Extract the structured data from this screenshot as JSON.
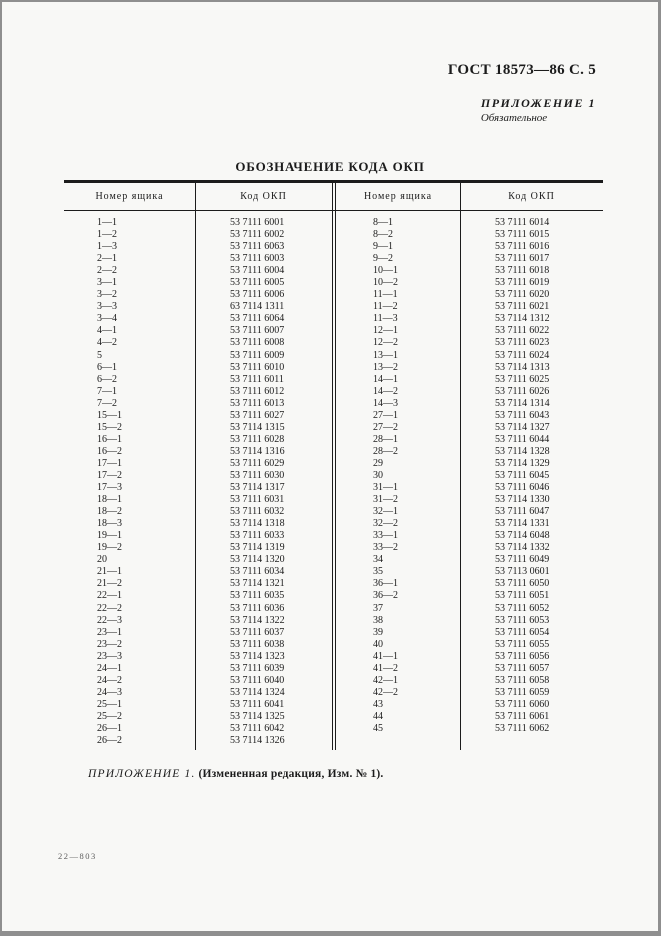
{
  "page": {
    "doc_ref": "ГОСТ 18573—86 С. 5",
    "appendix_label": "ПРИЛОЖЕНИЕ 1",
    "appendix_sublabel": "Обязательное",
    "print_code": "22—803"
  },
  "table": {
    "title": "ОБОЗНАЧЕНИЕ КОДА ОКП",
    "col_headers": [
      "Номер ящика",
      "Код ОКП",
      "Номер ящика",
      "Код ОКП"
    ],
    "left_rows": [
      {
        "num": "1—1",
        "code": "53 7111 6001"
      },
      {
        "num": "1—2",
        "code": "53 7111 6002"
      },
      {
        "num": "1—3",
        "code": "53 7111 6063"
      },
      {
        "num": "2—1",
        "code": "53 7111 6003"
      },
      {
        "num": "2—2",
        "code": "53 7111 6004"
      },
      {
        "num": "3—1",
        "code": "53 7111 6005"
      },
      {
        "num": "3—2",
        "code": "53 7111 6006"
      },
      {
        "num": "3—3",
        "code": "63 7114 1311"
      },
      {
        "num": "3—4",
        "code": "53 7111 6064"
      },
      {
        "num": "4—1",
        "code": "53 7111 6007"
      },
      {
        "num": "4—2",
        "code": "53 7111 6008"
      },
      {
        "num": "5",
        "code": "53 7111 6009"
      },
      {
        "num": "6—1",
        "code": "53 7111 6010"
      },
      {
        "num": "6—2",
        "code": "53 7111 6011"
      },
      {
        "num": "7—1",
        "code": "53 7111 6012"
      },
      {
        "num": "7—2",
        "code": "53 7111 6013"
      },
      {
        "num": "15—1",
        "code": "53 7111 6027"
      },
      {
        "num": "15—2",
        "code": "53 7114 1315"
      },
      {
        "num": "16—1",
        "code": "53 7111 6028"
      },
      {
        "num": "16—2",
        "code": "53 7114 1316"
      },
      {
        "num": "17—1",
        "code": "53 7111 6029"
      },
      {
        "num": "17—2",
        "code": "53 7111 6030"
      },
      {
        "num": "17—3",
        "code": "53 7114 1317"
      },
      {
        "num": "18—1",
        "code": "53 7111 6031"
      },
      {
        "num": "18—2",
        "code": "53 7111 6032"
      },
      {
        "num": "18—3",
        "code": "53 7114 1318"
      },
      {
        "num": "19—1",
        "code": "53 7111 6033"
      },
      {
        "num": "19—2",
        "code": "53 7114 1319"
      },
      {
        "num": "20",
        "code": "53 7114 1320"
      },
      {
        "num": "21—1",
        "code": "53 7111 6034"
      },
      {
        "num": "21—2",
        "code": "53 7114 1321"
      },
      {
        "num": "22—1",
        "code": "53 7111 6035"
      },
      {
        "num": "22—2",
        "code": "53 7111 6036"
      },
      {
        "num": "22—3",
        "code": "53 7114 1322"
      },
      {
        "num": "23—1",
        "code": "53 7111 6037"
      },
      {
        "num": "23—2",
        "code": "53 7111 6038"
      },
      {
        "num": "23—3",
        "code": "53 7114 1323"
      },
      {
        "num": "24—1",
        "code": "53 7111 6039"
      },
      {
        "num": "24—2",
        "code": "53 7111 6040"
      },
      {
        "num": "24—3",
        "code": "53 7114 1324"
      },
      {
        "num": "25—1",
        "code": "53 7111 6041"
      },
      {
        "num": "25—2",
        "code": "53 7114 1325"
      },
      {
        "num": "26—1",
        "code": "53 7111 6042"
      },
      {
        "num": "26—2",
        "code": "53 7114 1326"
      }
    ],
    "right_rows": [
      {
        "num": "8—1",
        "code": "53 7111 6014"
      },
      {
        "num": "8—2",
        "code": "53 7111 6015"
      },
      {
        "num": "9—1",
        "code": "53 7111 6016"
      },
      {
        "num": "9—2",
        "code": "53 7111 6017"
      },
      {
        "num": "10—1",
        "code": "53 7111 6018"
      },
      {
        "num": "10—2",
        "code": "53 7111 6019"
      },
      {
        "num": "11—1",
        "code": "53 7111 6020"
      },
      {
        "num": "11—2",
        "code": "53 7111 6021"
      },
      {
        "num": "11—3",
        "code": "53 7114 1312"
      },
      {
        "num": "12—1",
        "code": "53 7111 6022"
      },
      {
        "num": "12—2",
        "code": "53 7111 6023"
      },
      {
        "num": "13—1",
        "code": "53 7111 6024"
      },
      {
        "num": "13—2",
        "code": "53 7114 1313"
      },
      {
        "num": "14—1",
        "code": "53 7111 6025"
      },
      {
        "num": "14—2",
        "code": "53 7111 6026"
      },
      {
        "num": "14—3",
        "code": "53 7114 1314"
      },
      {
        "num": "27—1",
        "code": "53 7111 6043"
      },
      {
        "num": "27—2",
        "code": "53 7114 1327"
      },
      {
        "num": "28—1",
        "code": "53 7111 6044"
      },
      {
        "num": "28—2",
        "code": "53 7114 1328"
      },
      {
        "num": "29",
        "code": "53 7114 1329"
      },
      {
        "num": "30",
        "code": "53 7111 6045"
      },
      {
        "num": "31—1",
        "code": "53 7111 6046"
      },
      {
        "num": "31—2",
        "code": "53 7114 1330"
      },
      {
        "num": "32—1",
        "code": "53 7111 6047"
      },
      {
        "num": "32—2",
        "code": "53 7114 1331"
      },
      {
        "num": "33—1",
        "code": "53 7114 6048"
      },
      {
        "num": "33—2",
        "code": "53 7114 1332"
      },
      {
        "num": "34",
        "code": "53 7111 6049"
      },
      {
        "num": "35",
        "code": "53 7113 0601"
      },
      {
        "num": "36—1",
        "code": "53 7111 6050"
      },
      {
        "num": "36—2",
        "code": "53 7111 6051"
      },
      {
        "num": "37",
        "code": "53 7111 6052"
      },
      {
        "num": "38",
        "code": "53 7111 6053"
      },
      {
        "num": "39",
        "code": "53 7111 6054"
      },
      {
        "num": "40",
        "code": "53 7111 6055"
      },
      {
        "num": "41—1",
        "code": "53 7111 6056"
      },
      {
        "num": "41—2",
        "code": "53 7111 6057"
      },
      {
        "num": "42—1",
        "code": "53 7111 6058"
      },
      {
        "num": "42—2",
        "code": "53 7111 6059"
      },
      {
        "num": "43",
        "code": "53 7111 6060"
      },
      {
        "num": "44",
        "code": "53 7111 6061"
      },
      {
        "num": "45",
        "code": "53 7111 6062"
      }
    ]
  },
  "footer": {
    "note_italic": "ПРИЛОЖЕНИЕ 1.",
    "note_bold": "(Измененная редакция, Изм. № 1)."
  }
}
